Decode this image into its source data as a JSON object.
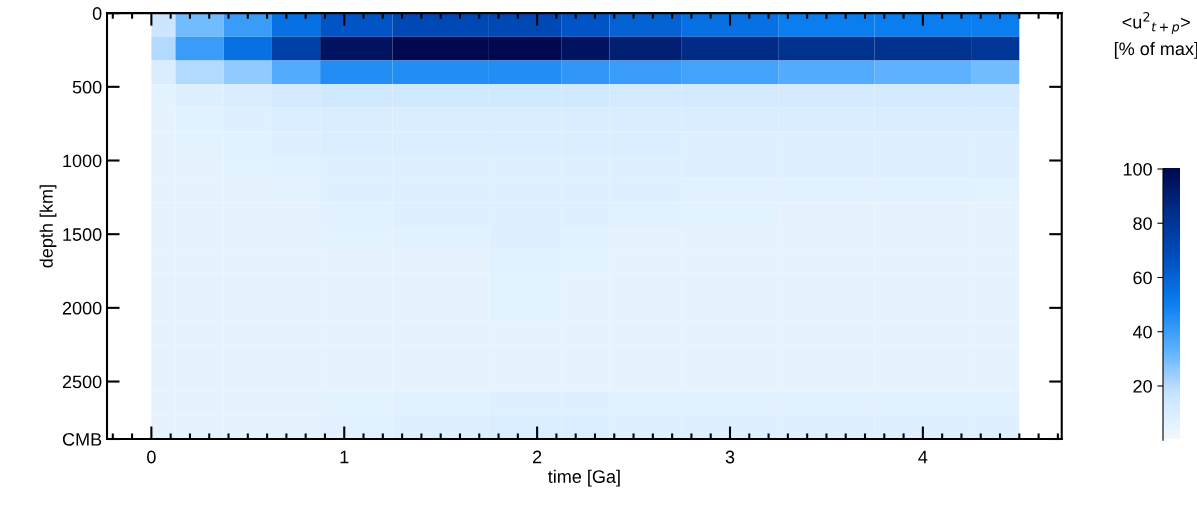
{
  "chart_data": {
    "type": "heatmap",
    "xlabel": "time [Ga]",
    "ylabel": "depth [km]",
    "clabel": "<u$^{2}$$_{t+p}$>\n[% of max]",
    "x": [
      0,
      0.25,
      0.5,
      0.75,
      1,
      1.5,
      2,
      2.25,
      2.5,
      3,
      3.5,
      4,
      4.5
    ],
    "cells": [
      [
        15,
        30,
        40,
        55,
        65,
        70,
        70,
        65,
        60,
        55,
        50,
        50,
        50
      ],
      [
        20,
        40,
        55,
        75,
        95,
        100,
        100,
        95,
        90,
        85,
        82,
        82,
        80
      ],
      [
        10,
        20,
        25,
        35,
        45,
        45,
        45,
        42,
        40,
        38,
        35,
        33,
        30
      ],
      [
        6,
        8,
        10,
        12,
        13,
        13,
        13,
        13,
        12,
        12,
        12,
        12,
        12
      ],
      [
        5,
        7,
        8,
        9,
        10,
        10,
        10,
        10,
        10,
        10,
        10,
        10,
        10
      ],
      [
        5,
        6,
        7,
        8,
        9,
        9,
        9,
        9,
        9,
        8,
        8,
        8,
        8
      ],
      [
        5,
        5,
        6,
        7,
        8,
        8,
        8,
        8,
        8,
        8,
        8,
        8,
        8
      ],
      [
        5,
        5,
        5,
        6,
        8,
        8,
        8,
        8,
        8,
        7,
        7,
        7,
        6
      ],
      [
        5,
        5,
        5,
        5,
        7,
        8,
        8,
        8,
        7,
        6,
        5,
        5,
        5
      ],
      [
        5,
        5,
        5,
        5,
        6,
        7,
        8,
        7,
        5,
        5,
        5,
        5,
        5
      ],
      [
        5,
        5,
        5,
        5,
        5,
        5,
        7,
        6,
        5,
        5,
        5,
        5,
        5
      ],
      [
        5,
        5,
        5,
        5,
        5,
        5,
        6,
        5,
        5,
        5,
        5,
        5,
        5
      ],
      [
        5,
        5,
        5,
        5,
        5,
        5,
        6,
        5,
        5,
        5,
        5,
        5,
        5
      ],
      [
        5,
        5,
        5,
        5,
        5,
        5,
        5,
        5,
        5,
        5,
        5,
        5,
        5
      ],
      [
        5,
        5,
        5,
        5,
        5,
        5,
        5,
        5,
        5,
        5,
        5,
        5,
        5
      ],
      [
        5,
        5,
        5,
        5,
        5,
        5,
        5,
        5,
        5,
        5,
        5,
        5,
        5
      ],
      [
        5,
        5,
        5,
        5,
        6,
        7,
        8,
        8,
        7,
        7,
        7,
        7,
        7
      ],
      [
        5,
        5,
        5,
        5,
        7,
        8,
        9,
        9,
        8,
        8,
        8,
        8,
        8
      ]
    ],
    "colors": [
      "#f2f9ff",
      "#c8e4ff",
      "#5ab0ff",
      "#0a7ef0",
      "#0050c0",
      "#002f8c",
      "#000850"
    ],
    "clim": [
      0,
      100
    ],
    "cticks": [
      20,
      40,
      60,
      80,
      100
    ],
    "xlim": [
      -0.23,
      4.72
    ],
    "xticks": [
      {
        "value": -0.2,
        "label": null
      },
      {
        "value": -0.1,
        "label": null
      },
      0,
      {
        "value": 0.1,
        "label": null
      },
      {
        "value": 0.2,
        "label": null
      },
      {
        "value": 0.3,
        "label": null
      },
      {
        "value": 0.4,
        "label": null
      },
      {
        "value": 0.5,
        "label": null
      },
      {
        "value": 0.6,
        "label": null
      },
      {
        "value": 0.7,
        "label": null
      },
      {
        "value": 0.8,
        "label": null
      },
      {
        "value": 0.9,
        "label": null
      },
      1,
      {
        "value": 1.1,
        "label": null
      },
      {
        "value": 1.2,
        "label": null
      },
      {
        "value": 1.3,
        "label": null
      },
      {
        "value": 1.4,
        "label": null
      },
      {
        "value": 1.5,
        "label": null
      },
      {
        "value": 1.6,
        "label": null
      },
      {
        "value": 1.7,
        "label": null
      },
      {
        "value": 1.8,
        "label": null
      },
      {
        "value": 1.9,
        "label": null
      },
      2,
      {
        "value": 2.1,
        "label": null
      },
      {
        "value": 2.2,
        "label": null
      },
      {
        "value": 2.3,
        "label": null
      },
      {
        "value": 2.4,
        "label": null
      },
      {
        "value": 2.5,
        "label": null
      },
      {
        "value": 2.6,
        "label": null
      },
      {
        "value": 2.7,
        "label": null
      },
      {
        "value": 2.8,
        "label": null
      },
      {
        "value": 2.9,
        "label": null
      },
      3,
      {
        "value": 3.1,
        "label": null
      },
      {
        "value": 3.2,
        "label": null
      },
      {
        "value": 3.3,
        "label": null
      },
      {
        "value": 3.4,
        "label": null
      },
      {
        "value": 3.5,
        "label": null
      },
      {
        "value": 3.6,
        "label": null
      },
      {
        "value": 3.7,
        "label": null
      },
      {
        "value": 3.8,
        "label": null
      },
      {
        "value": 3.9,
        "label": null
      },
      4,
      {
        "value": 4.1,
        "label": null
      },
      {
        "value": 4.2,
        "label": null
      },
      {
        "value": 4.3,
        "label": null
      },
      {
        "value": 4.4,
        "label": null
      },
      {
        "value": 4.5,
        "label": null
      },
      {
        "value": 4.6,
        "label": null
      },
      {
        "value": 4.7,
        "label": null
      }
    ],
    "ylim": [
      2890,
      0
    ],
    "yticks": [
      0,
      500,
      1000,
      1500,
      2000,
      2500,
      {
        "value": 2890,
        "label": "CMB"
      }
    ]
  }
}
